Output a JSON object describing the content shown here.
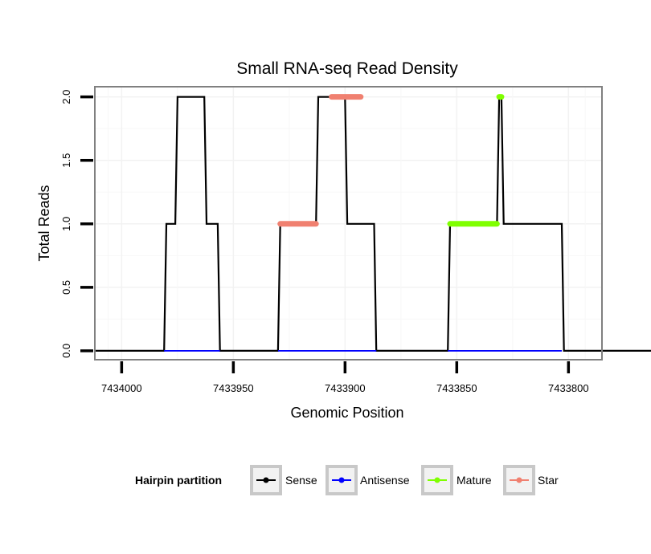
{
  "chart_data": {
    "type": "line",
    "title": "Small RNA-seq Read Density",
    "xlabel": "Genomic Position",
    "ylabel": "Total Reads",
    "xlim": [
      7434012,
      7433785
    ],
    "x_reversed": true,
    "ylim": [
      -0.07,
      2.08
    ],
    "x_ticks": [
      7434000,
      7433950,
      7433900,
      7433850,
      7433800
    ],
    "x_tick_labels": [
      "7434000",
      "7433950",
      "7433900",
      "7433850",
      "7433800"
    ],
    "y_ticks": [
      0.0,
      0.5,
      1.0,
      1.5,
      2.0
    ],
    "y_tick_labels": [
      "0.0",
      "0.5",
      "1.0",
      "1.5",
      "2.0"
    ],
    "grid": true,
    "legend": {
      "title": "Hairpin partition",
      "position": "bottom",
      "entries": [
        {
          "label": "Sense",
          "color": "#000000"
        },
        {
          "label": "Antisense",
          "color": "#0000FF"
        },
        {
          "label": "Mature",
          "color": "#7FFF00"
        },
        {
          "label": "Star",
          "color": "#F08070"
        }
      ]
    },
    "series": [
      {
        "name": "Sense",
        "color": "#000000",
        "style": "line",
        "x": [
          7434012,
          7433981,
          7433980,
          7433976,
          7433975,
          7433963,
          7433962,
          7433957,
          7433956,
          7433930,
          7433929,
          7433913,
          7433912,
          7433900,
          7433899,
          7433887,
          7433886,
          7433854,
          7433853,
          7433832,
          7433831,
          7433830,
          7433829,
          7433803,
          7433802,
          7433762
        ],
        "y": [
          0,
          0,
          1,
          1,
          2,
          2,
          1,
          1,
          0,
          0,
          1,
          1,
          2,
          2,
          1,
          1,
          0,
          0,
          1,
          1,
          2,
          2,
          1,
          1,
          0,
          0
        ]
      },
      {
        "name": "Antisense",
        "color": "#0000FF",
        "style": "segments",
        "segments": [
          {
            "x": [
              7433981,
              7433956
            ],
            "y": [
              0,
              0
            ]
          },
          {
            "x": [
              7433930,
              7433886
            ],
            "y": [
              0,
              0
            ]
          },
          {
            "x": [
              7433854,
              7433803
            ],
            "y": [
              0,
              0
            ]
          }
        ]
      },
      {
        "name": "Mature",
        "color": "#7FFF00",
        "style": "segments",
        "segments": [
          {
            "x": [
              7433853,
              7433832
            ],
            "y": [
              1,
              1
            ]
          },
          {
            "x": [
              7433831,
              7433830
            ],
            "y": [
              2,
              2
            ]
          }
        ]
      },
      {
        "name": "Star",
        "color": "#F08070",
        "style": "segments",
        "segments": [
          {
            "x": [
              7433929,
              7433913
            ],
            "y": [
              1,
              1
            ]
          },
          {
            "x": [
              7433906,
              7433893
            ],
            "y": [
              2,
              2
            ]
          }
        ]
      }
    ]
  }
}
